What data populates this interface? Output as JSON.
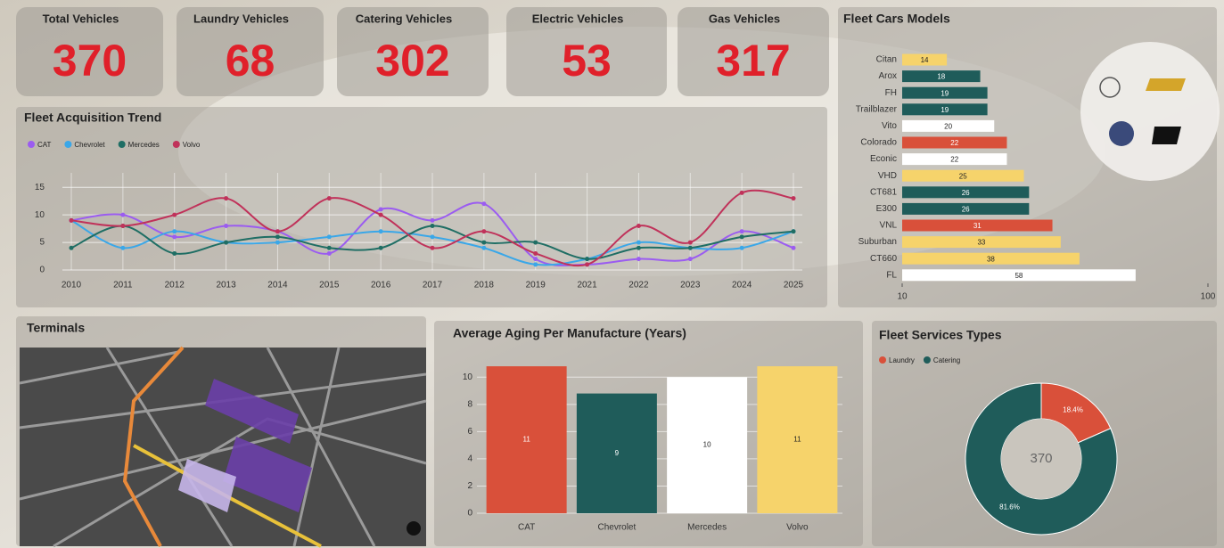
{
  "kpis": [
    {
      "title": "Total Vehicles",
      "value": 370
    },
    {
      "title": "Laundry Vehicles",
      "value": 68
    },
    {
      "title": "Catering Vehicles",
      "value": 302
    },
    {
      "title": "Electric Vehicles",
      "value": 53
    },
    {
      "title": "Gas Vehicles",
      "value": 317
    }
  ],
  "map": {
    "title": "Terminals"
  },
  "chart_data": [
    {
      "type": "line",
      "title": "Fleet Acquisition Trend",
      "categories": [
        "2010",
        "2011",
        "2012",
        "2013",
        "2014",
        "2015",
        "2016",
        "2017",
        "2018",
        "2019",
        "2021",
        "2022",
        "2023",
        "2024",
        "2025"
      ],
      "series": [
        {
          "name": "CAT",
          "color": "#9b5cf0",
          "values": [
            9,
            10,
            6,
            8,
            7,
            3,
            11,
            9,
            12,
            2,
            1,
            2,
            2,
            7,
            4
          ]
        },
        {
          "name": "Chevrolet",
          "color": "#3aa7e8",
          "values": [
            9,
            4,
            7,
            5,
            5,
            6,
            7,
            6,
            4,
            1,
            2,
            5,
            4,
            4,
            7
          ]
        },
        {
          "name": "Mercedes",
          "color": "#1f6e64",
          "values": [
            4,
            8,
            3,
            5,
            6,
            4,
            4,
            8,
            5,
            5,
            2,
            4,
            4,
            6,
            7
          ]
        },
        {
          "name": "Volvo",
          "color": "#c0325a",
          "values": [
            9,
            8,
            10,
            13,
            7,
            13,
            10,
            4,
            7,
            3,
            1,
            8,
            5,
            14,
            13
          ]
        }
      ],
      "ylim": [
        0,
        16
      ],
      "yticks": [
        0,
        5,
        10,
        15
      ],
      "grid": true,
      "legend": "top-left"
    },
    {
      "type": "hbar",
      "title": "Fleet Cars Models",
      "categories": [
        "Citan",
        "Arox",
        "FH",
        "Trailblazer",
        "Vito",
        "Colorado",
        "Econic",
        "VHD",
        "CT681",
        "E300",
        "VNL",
        "Suburban",
        "CT660",
        "FL"
      ],
      "values": [
        14,
        18,
        19,
        19,
        20,
        22,
        22,
        25,
        26,
        26,
        31,
        33,
        38,
        58
      ],
      "colors": [
        "#f6d36b",
        "#1f5c5a",
        "#1f5c5a",
        "#1f5c5a",
        "#ffffff",
        "#d9503a",
        "#ffffff",
        "#f6d36b",
        "#1f5c5a",
        "#1f5c5a",
        "#d9503a",
        "#f6d36b",
        "#f6d36b",
        "#ffffff"
      ],
      "xlim": [
        10,
        100
      ],
      "xticks": [
        10,
        100
      ],
      "log_x": true
    },
    {
      "type": "bar",
      "title": "Average Aging  Per Manufacture (Years)",
      "categories": [
        "CAT",
        "Chevrolet",
        "Mercedes",
        "Volvo"
      ],
      "values": [
        10.8,
        8.8,
        10,
        10.8
      ],
      "value_labels": [
        "11",
        "9",
        "10",
        "11"
      ],
      "colors": [
        "#d9503a",
        "#1f5c5a",
        "#ffffff",
        "#f6d36b"
      ],
      "ylim": [
        0,
        11
      ],
      "yticks": [
        0,
        2,
        4,
        6,
        8,
        10
      ],
      "grid": true
    },
    {
      "type": "donut",
      "title": "Fleet Services Types",
      "categories": [
        "Laundry",
        "Catering"
      ],
      "values": [
        18.4,
        81.6
      ],
      "value_labels": [
        "18.4%",
        "81.6%"
      ],
      "colors": [
        "#d9503a",
        "#1f5c5a"
      ],
      "center_label": "370",
      "legend": "top-left"
    }
  ]
}
